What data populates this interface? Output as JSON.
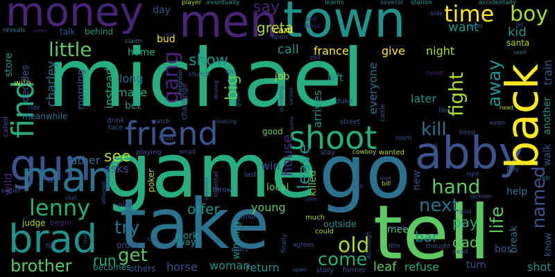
{
  "background": "#000000",
  "palette": {
    "purple": "#482475",
    "indigo": "#3b528b",
    "blue": "#2c728e",
    "teal": "#21918c",
    "green": "#27ad81",
    "lime": "#5ec962",
    "yellowgreen": "#aadc32",
    "yellow": "#fde725"
  },
  "words": [
    "michael",
    "game",
    "take",
    "tell",
    "go",
    "town",
    "men",
    "money",
    "abby",
    "back",
    "gun",
    "man",
    "brad",
    "friend",
    "shoot",
    "find",
    "lenny",
    "time",
    "boy",
    "little",
    "gang",
    "hand",
    "kill",
    "fight",
    "named",
    "away",
    "life",
    "old",
    "next",
    "come",
    "leave",
    "get",
    "try",
    "brother",
    "see",
    "show",
    "big",
    "say",
    "greta",
    "call",
    "france",
    "give",
    "night",
    "want",
    "kid",
    "charley",
    "house",
    "run",
    "bar",
    "pay",
    "dad",
    "shot",
    "return",
    "woman",
    "horse",
    "offer",
    "young",
    "outside",
    "meet",
    "leaf",
    "refuse",
    "turn",
    "help",
    "train",
    "another",
    "walk",
    "bos",
    "later",
    "everyone",
    "arrives",
    "left",
    "job",
    "card",
    "bud",
    "day",
    "home",
    "long",
    "make",
    "bet",
    "instead",
    "asks",
    "father",
    "store",
    "wife",
    "decides",
    "morning",
    "meanwhile",
    "wild",
    "judge",
    "begin",
    "win",
    "killed",
    "local",
    "new",
    "break",
    "know",
    "winning",
    "work",
    "way",
    "order",
    "becomes",
    "others",
    "together",
    "poker",
    "playing",
    "drink",
    "face",
    "talk",
    "behind",
    "reveals",
    "miller",
    "claim",
    "arm",
    "church",
    "neighbor",
    "son",
    "driving",
    "given",
    "saloon",
    "gambling",
    "duke",
    "street",
    "good",
    "scene",
    "cattle",
    "room",
    "wanted",
    "cowboy",
    "stay",
    "upon",
    "still",
    "player",
    "eventually",
    "learns",
    "several",
    "station",
    "side",
    "accidentally",
    "year",
    "santa",
    "seen",
    "never",
    "like",
    "head",
    "even",
    "hired",
    "gambler",
    "right",
    "rob",
    "jackson",
    "buy",
    "gold",
    "family",
    "film",
    "dead",
    "thought",
    "although",
    "former",
    "story",
    "open",
    "agrees",
    "finally",
    "could",
    "much",
    "warns",
    "join",
    "john",
    "look",
    "bill",
    "diner",
    "start",
    "throw",
    "last",
    "must",
    "small",
    "watch",
    "looking",
    "challenge",
    "attempt",
    "club",
    "pick",
    "loan",
    "explains",
    "set",
    "owner",
    "fire",
    "truth",
    "called",
    "ride",
    "let",
    "end",
    "place"
  ]
}
